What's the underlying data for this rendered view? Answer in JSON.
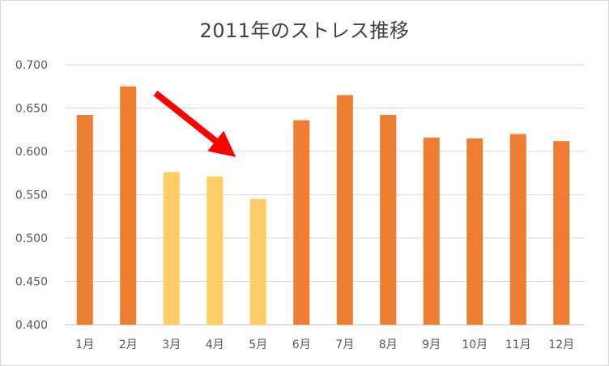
{
  "chart_data": {
    "type": "bar",
    "title": "2011年のストレス推移",
    "categories": [
      "1月",
      "2月",
      "3月",
      "4月",
      "5月",
      "6月",
      "7月",
      "8月",
      "9月",
      "10月",
      "11月",
      "12月"
    ],
    "values": [
      0.642,
      0.675,
      0.576,
      0.571,
      0.545,
      0.636,
      0.665,
      0.642,
      0.616,
      0.615,
      0.62,
      0.612
    ],
    "bar_colors": [
      "#ed7d31",
      "#ed7d31",
      "#ffcc66",
      "#ffcc66",
      "#ffcc66",
      "#ed7d31",
      "#ed7d31",
      "#ed7d31",
      "#ed7d31",
      "#ed7d31",
      "#ed7d31",
      "#ed7d31"
    ],
    "ylim": [
      0.4,
      0.7
    ],
    "yticks": [
      "0.400",
      "0.450",
      "0.500",
      "0.550",
      "0.600",
      "0.650",
      "0.700"
    ],
    "grid": true,
    "legend": "none",
    "annotation": {
      "type": "arrow",
      "color": "#ff0000",
      "direction": "down-right"
    }
  }
}
